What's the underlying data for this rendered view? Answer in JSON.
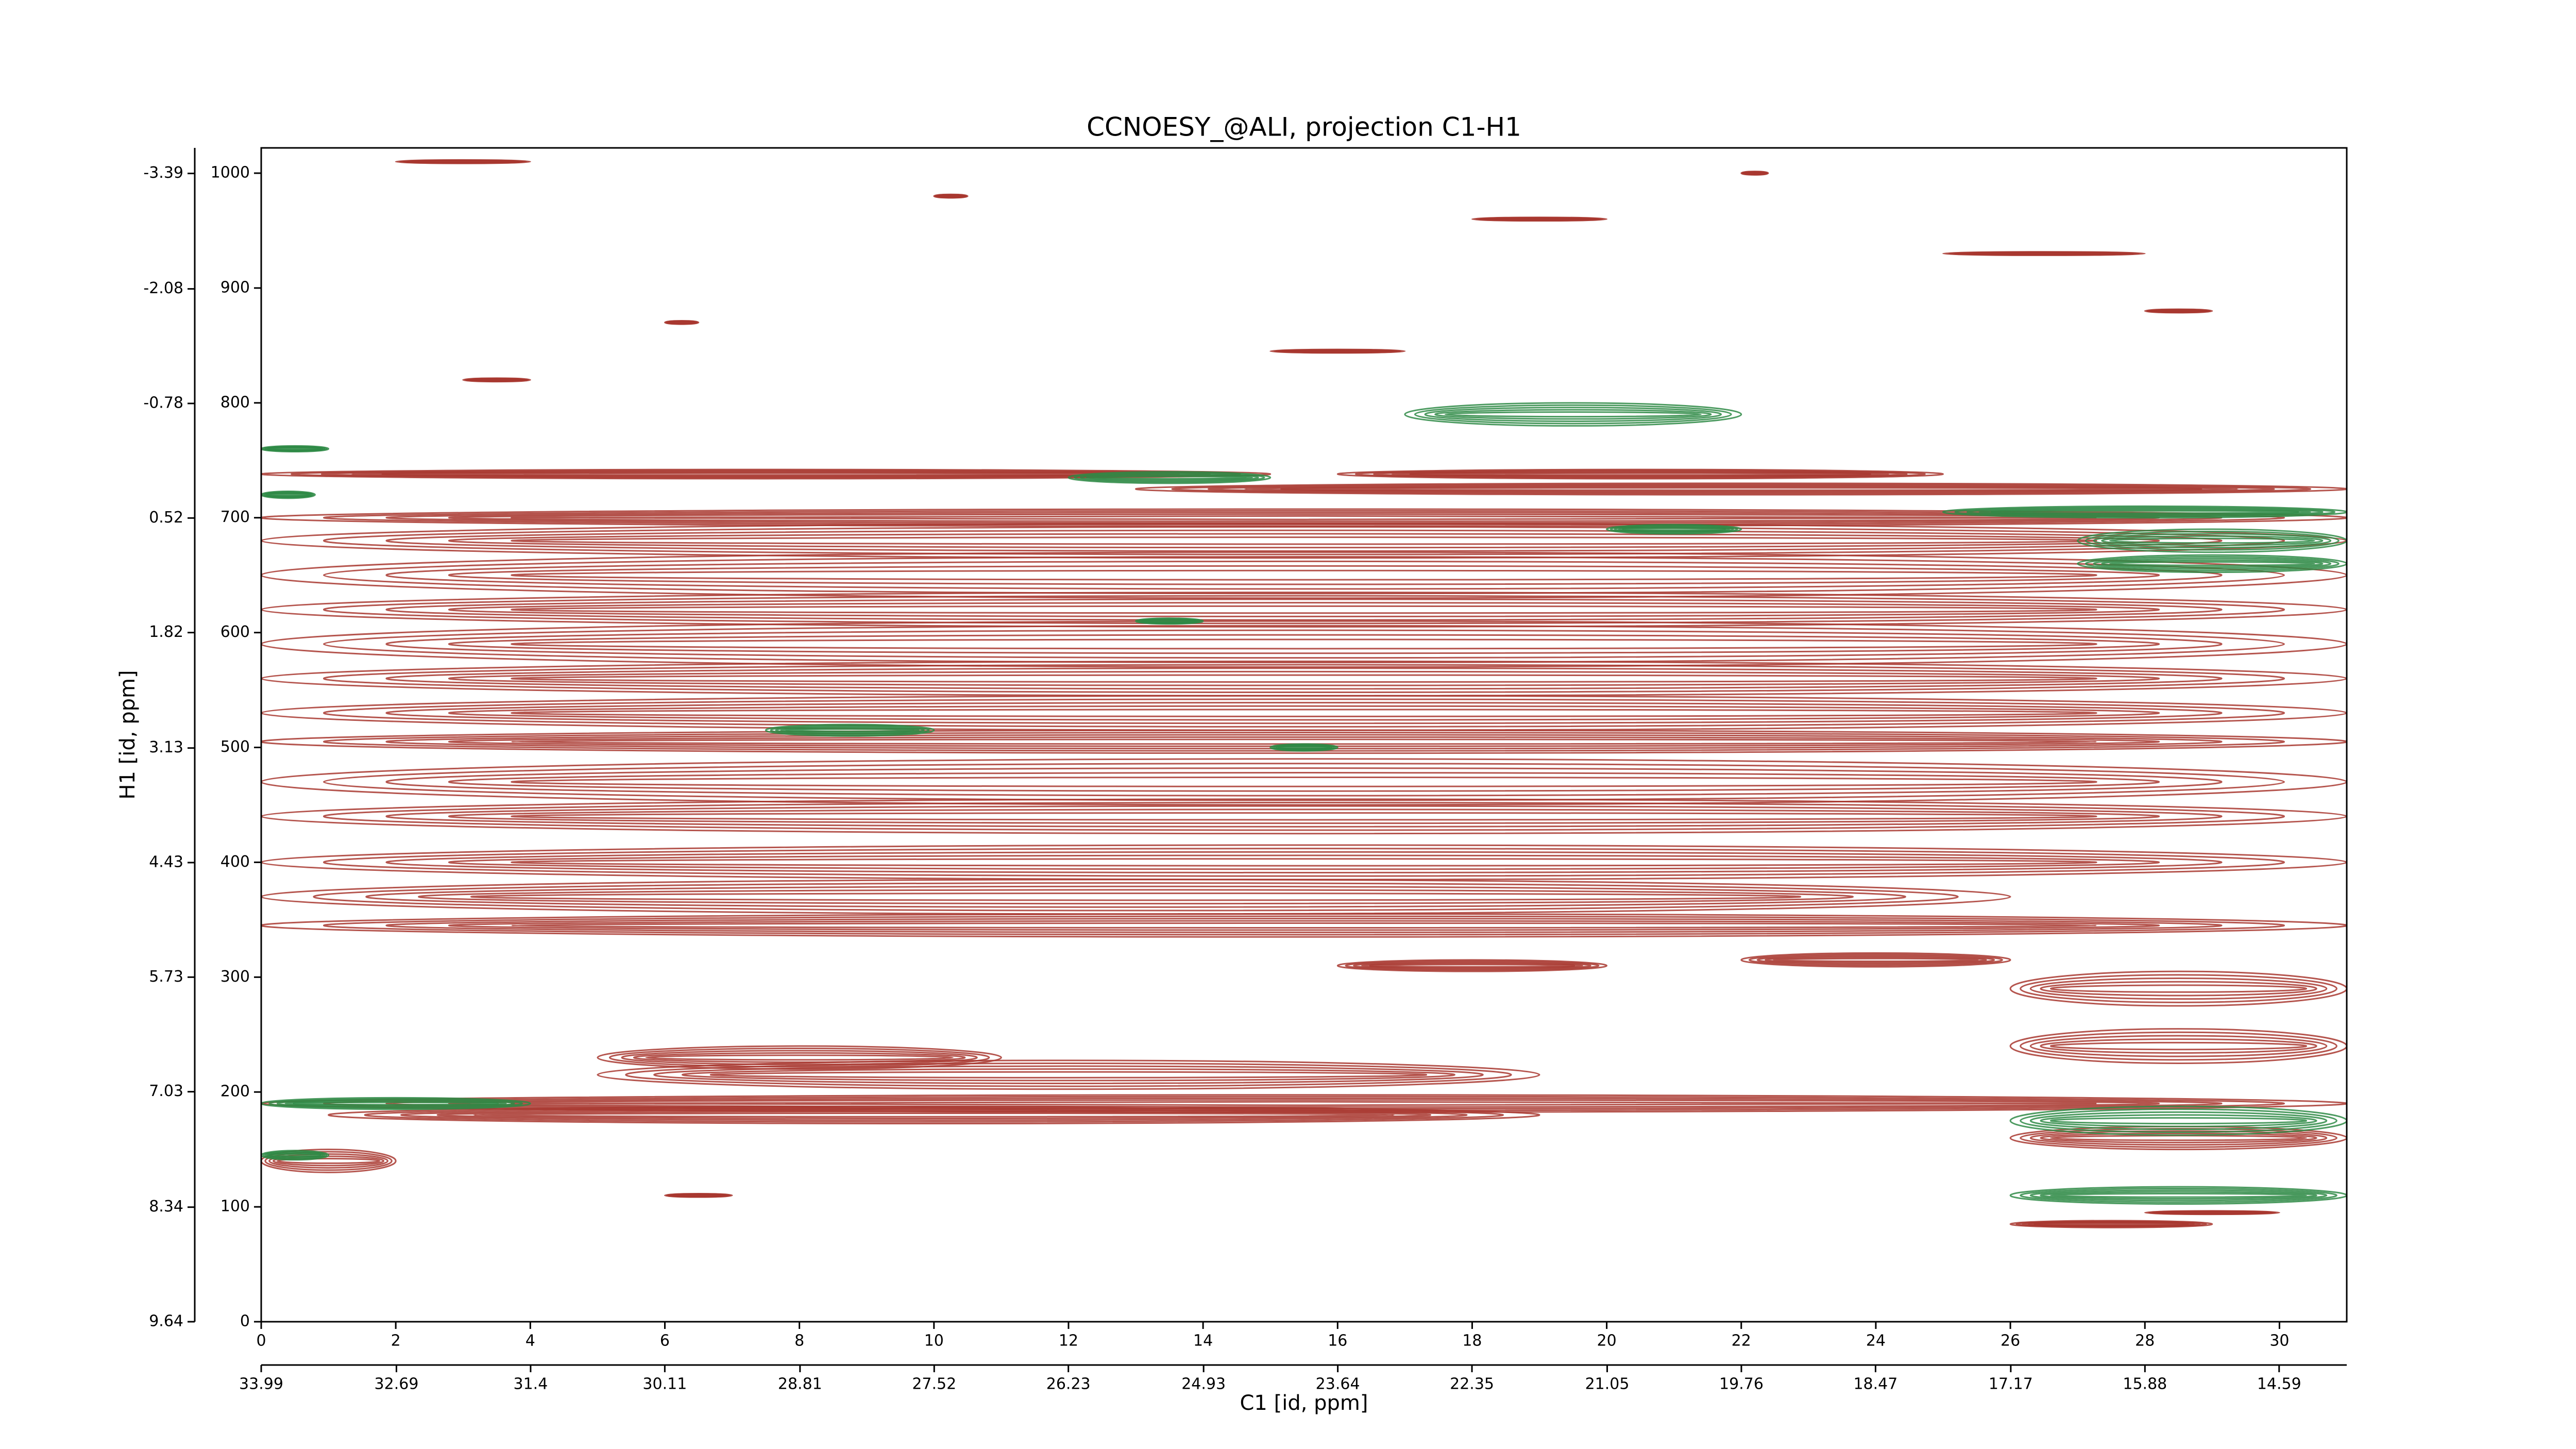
{
  "chart_data": {
    "type": "contour",
    "title": "CCNOESY_@ALI, projection C1-H1",
    "x_label": "C1 [id, ppm]",
    "y_label": "H1 [id, ppm]",
    "xlim": [
      0,
      31
    ],
    "xticks": [
      0,
      2,
      4,
      6,
      8,
      10,
      12,
      14,
      16,
      18,
      20,
      22,
      24,
      26,
      28,
      30
    ],
    "ylim": [
      0,
      1022
    ],
    "yticks": [
      0,
      100,
      200,
      300,
      400,
      500,
      600,
      700,
      800,
      900,
      1000
    ],
    "x2lim": [
      33.99,
      13.94
    ],
    "x2ticks": [
      33.99,
      32.69,
      31.4,
      30.11,
      28.81,
      27.52,
      26.23,
      24.93,
      23.64,
      22.35,
      21.05,
      19.76,
      18.47,
      17.17,
      15.88,
      14.59
    ],
    "y2lim": [
      9.64,
      -3.68
    ],
    "y2ticks": [
      9.64,
      8.34,
      7.03,
      5.73,
      4.43,
      3.13,
      1.82,
      0.52,
      -0.78,
      -2.08,
      -3.39
    ],
    "series": [
      {
        "color": "#a8372f",
        "values": [
          700,
          680,
          650,
          620,
          590,
          560,
          530,
          505,
          470,
          440,
          400,
          370,
          345,
          725,
          738,
          738,
          310,
          315,
          290,
          240,
          215,
          230,
          190,
          180,
          160,
          140,
          85,
          1010,
          980,
          870,
          820,
          1000,
          845,
          930,
          880,
          110,
          95,
          960
        ],
        "x_start": [
          0,
          0,
          0,
          0,
          0,
          0,
          0,
          0,
          0,
          0,
          0,
          0,
          0,
          13,
          0,
          16,
          16,
          22,
          26,
          26,
          5,
          5,
          0,
          1,
          26,
          0,
          26,
          2,
          10,
          6,
          3,
          22,
          15,
          25,
          28,
          6,
          28,
          18
        ],
        "x_end": [
          31,
          31,
          31,
          31,
          31,
          31,
          31,
          31,
          31,
          31,
          31,
          26,
          31,
          31,
          15,
          25,
          20,
          26,
          31,
          31,
          19,
          11,
          31,
          19,
          31,
          2,
          29,
          4,
          10.5,
          6.5,
          4,
          22.4,
          17,
          28,
          29,
          7,
          30,
          20
        ],
        "heights": [
          15,
          30,
          40,
          30,
          40,
          30,
          30,
          20,
          40,
          30,
          30,
          30,
          20,
          10,
          8,
          8,
          10,
          12,
          30,
          30,
          25,
          20,
          15,
          15,
          20,
          20,
          6,
          3,
          3,
          3,
          3,
          3,
          3,
          3,
          3,
          3,
          3,
          3
        ]
      },
      {
        "color": "#2e8a45",
        "values": [
          760,
          720,
          790,
          735,
          705,
          680,
          660,
          515,
          500,
          190,
          175,
          145,
          110,
          610,
          690
        ],
        "x_start": [
          0,
          0,
          17,
          12,
          25,
          27,
          27,
          7.5,
          15,
          0,
          26,
          0,
          26,
          13,
          20
        ],
        "x_end": [
          1,
          0.8,
          22,
          15,
          31,
          31,
          31,
          10,
          16,
          4,
          31,
          1,
          31,
          14,
          22
        ],
        "heights": [
          5,
          6,
          20,
          10,
          10,
          20,
          15,
          10,
          6,
          10,
          25,
          8,
          15,
          5,
          8
        ]
      }
    ]
  }
}
